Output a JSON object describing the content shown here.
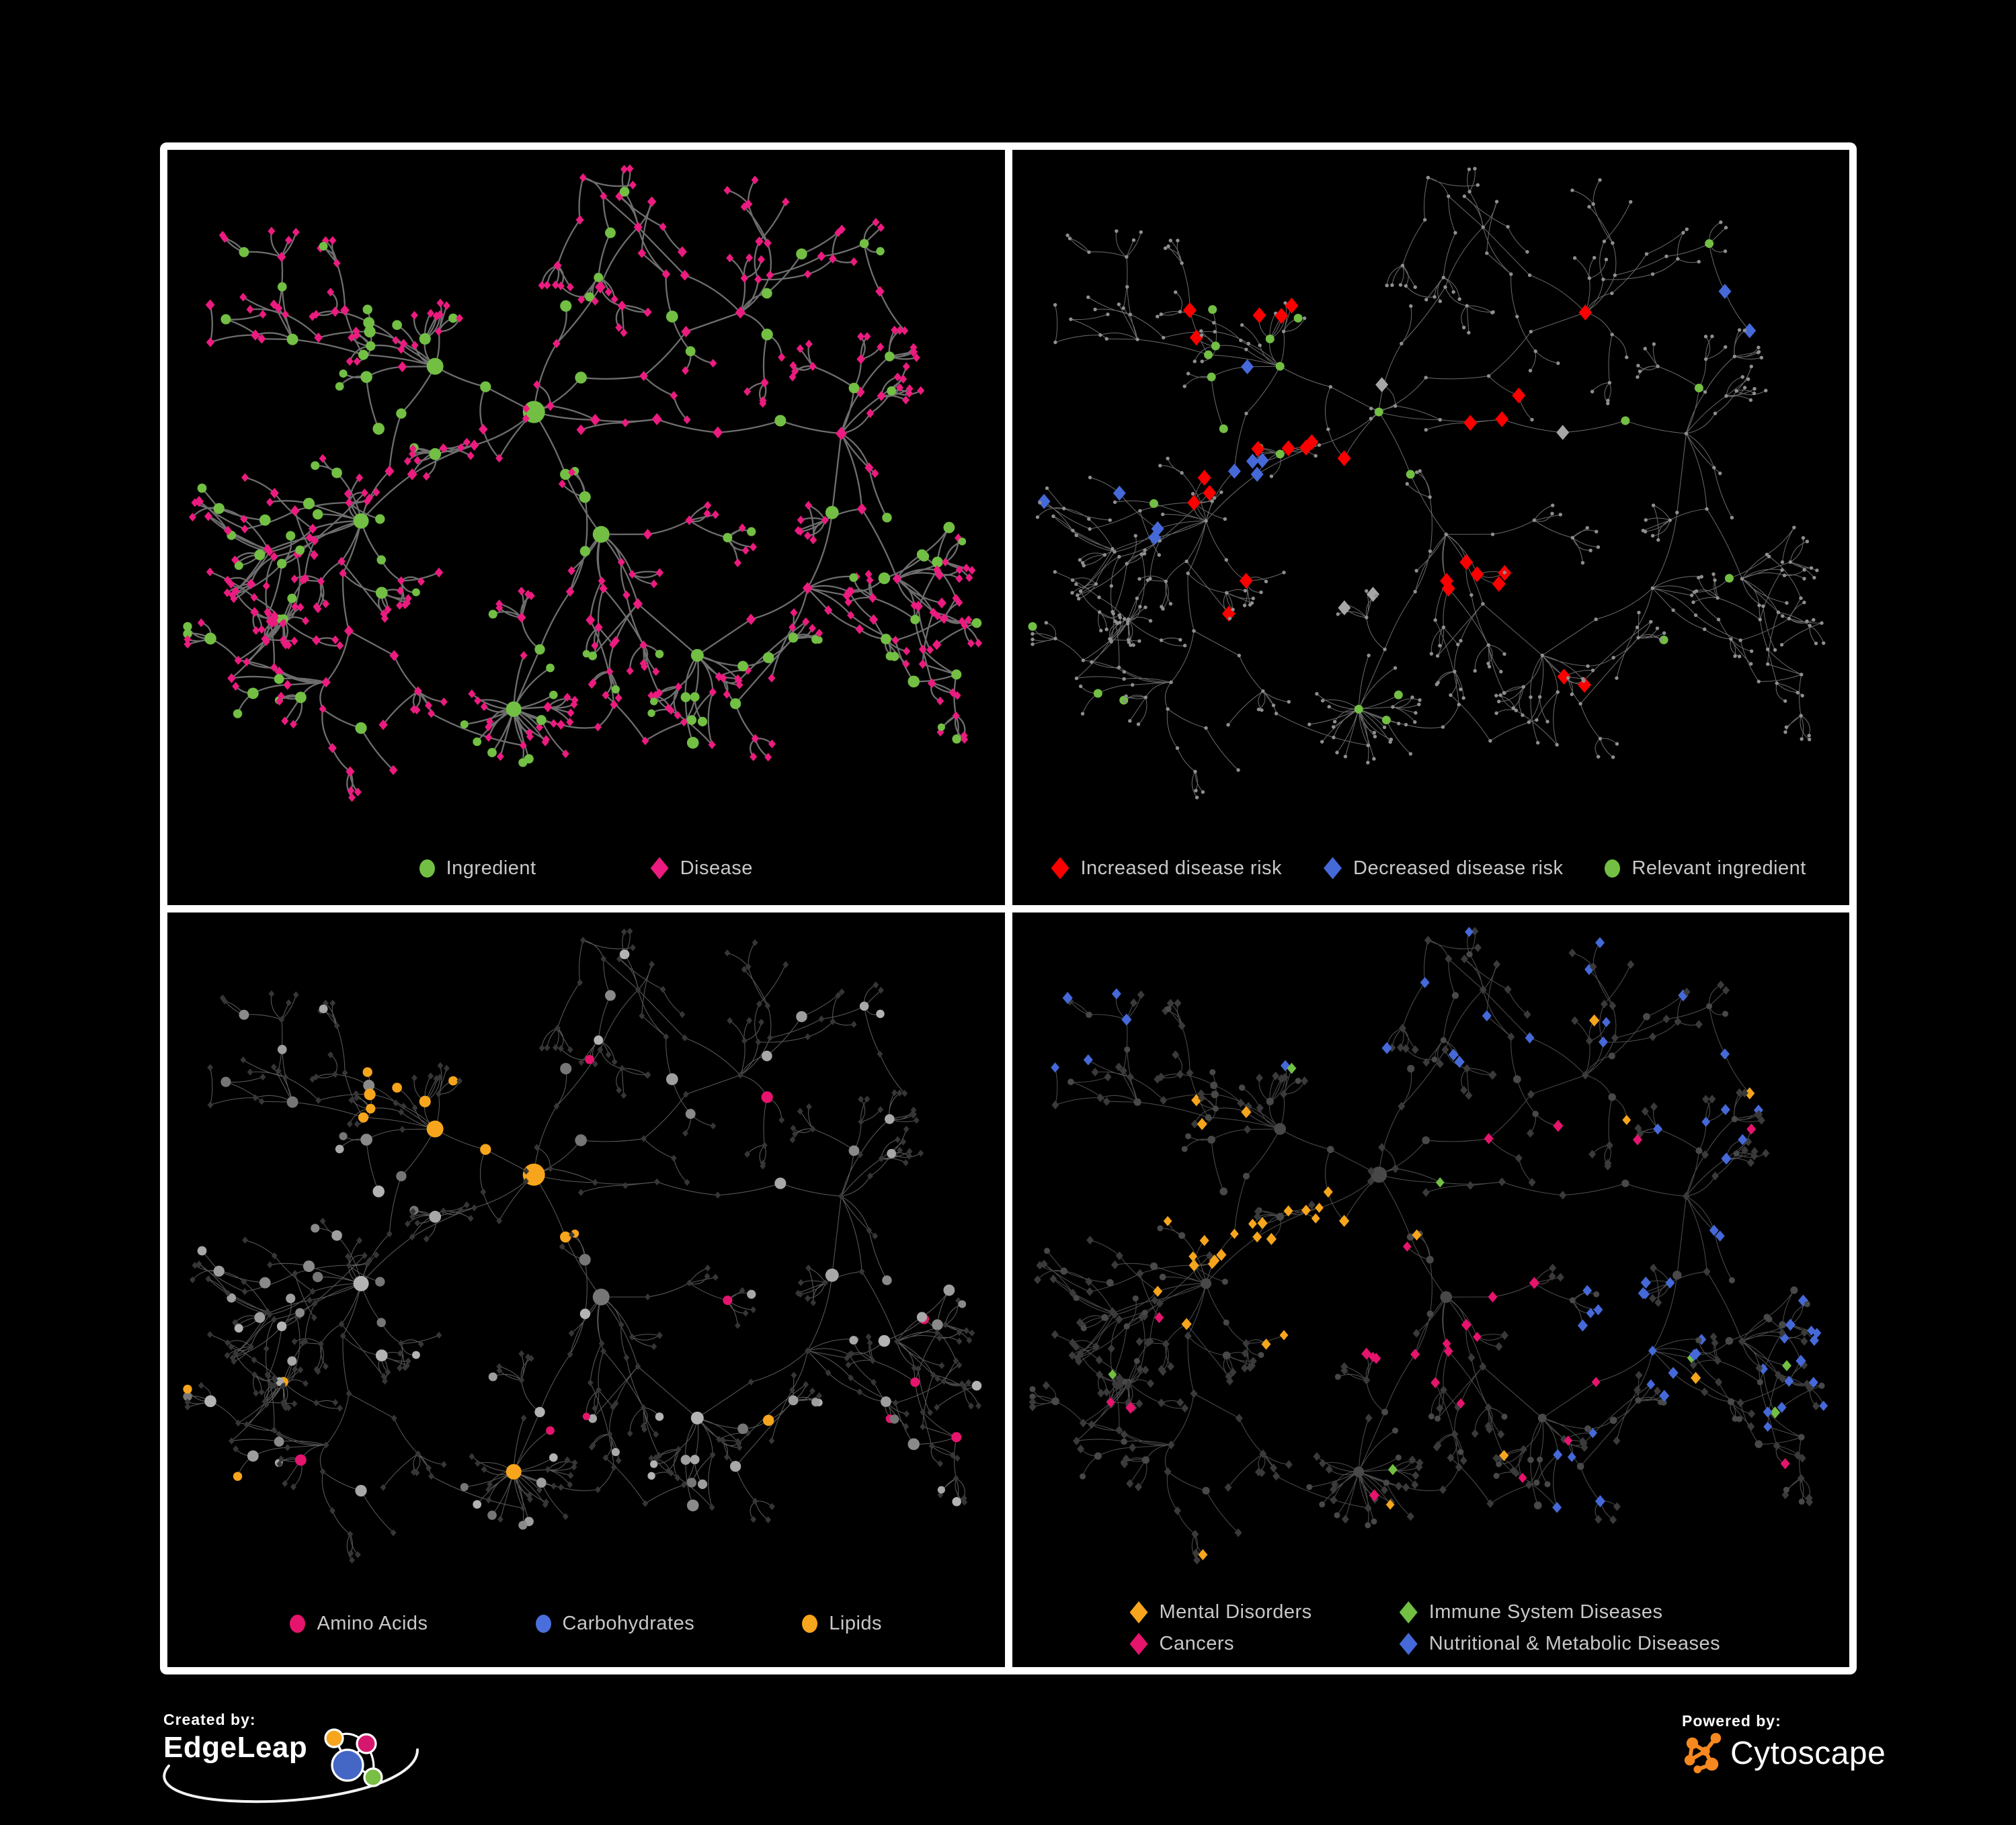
{
  "page": {
    "background": "#000000",
    "frame_color": "#FFFFFF"
  },
  "panels": [
    {
      "id": "ingredient-disease-network",
      "legend": [
        {
          "label": "Ingredient",
          "shape": "circle",
          "color": "#72BF44"
        },
        {
          "label": "Disease",
          "shape": "diamond",
          "color": "#EB1B7F"
        }
      ]
    },
    {
      "id": "disease-risk-network",
      "legend": [
        {
          "label": "Increased disease risk",
          "shape": "diamond",
          "color": "#FA0000"
        },
        {
          "label": "Decreased disease risk",
          "shape": "diamond",
          "color": "#4569D8"
        },
        {
          "label": "Relevant ingredient",
          "shape": "circle",
          "color": "#72BF44"
        }
      ]
    },
    {
      "id": "nutrient-class-network",
      "legend": [
        {
          "label": "Amino Acids",
          "shape": "circle",
          "color": "#E5146D"
        },
        {
          "label": "Carbohydrates",
          "shape": "circle",
          "color": "#4A6FDC"
        },
        {
          "label": "Lipids",
          "shape": "circle",
          "color": "#F6A51C"
        }
      ]
    },
    {
      "id": "disease-class-network",
      "legend": [
        {
          "label": "Mental Disorders",
          "shape": "diamond",
          "color": "#F6A51C"
        },
        {
          "label": "Immune System Diseases",
          "shape": "diamond",
          "color": "#72BF44"
        },
        {
          "label": "Cancers",
          "shape": "diamond",
          "color": "#E5146D"
        },
        {
          "label": "Nutritional & Metabolic Diseases",
          "shape": "diamond",
          "color": "#4569D8"
        }
      ]
    }
  ],
  "footer": {
    "created_by_label": "Created by:",
    "created_by_brand": "EdgeLeap",
    "powered_by_label": "Powered by:",
    "powered_by_brand": "Cytoscape",
    "edgeleap_logo_colors": {
      "orange": "#F6A51C",
      "pink": "#D6176E",
      "blue": "#4467C6",
      "green": "#79BF43"
    },
    "cytoscape_logo_color": "#F6881F"
  },
  "network": {
    "seed": 20417,
    "panel_styles": [
      {
        "edge": "#7A7A7A",
        "edge_w": 2.3,
        "edge_o": 0.9,
        "ingredient": "#72BF44",
        "disease": "#EB1B7F"
      },
      {
        "edge": "#8A8A8A",
        "edge_w": 1.0,
        "edge_o": 0.78,
        "dot": "#8F8F8F",
        "red": "#FA0000",
        "blue": "#4569D8",
        "gray": "#A6A6A6",
        "green": "#72BF44"
      },
      {
        "edge": "#A3A3A3",
        "edge_w": 1.05,
        "edge_o": 0.55,
        "disease": "#363636",
        "ingredient_shades": [
          "#9E9E9E",
          "#8A8A8A",
          "#B3B3B3",
          "#767676",
          "#A8A8A8"
        ],
        "amino": "#E5146D",
        "carb": "#4A6FDC",
        "lipid": "#F6A51C"
      },
      {
        "edge": "#969696",
        "edge_w": 1.05,
        "edge_o": 0.5,
        "disease": "#3A3A3A",
        "ingredient": "#484848",
        "mental": "#F6A51C",
        "immune": "#72BF44",
        "cancer": "#E5146D",
        "metabolic": "#4569D8"
      }
    ]
  },
  "chart_data": {
    "type": "network",
    "note": "Four panels show the same ingredient-disease association network with different colorings; black background, white panel frames.",
    "panels": [
      {
        "legend": [
          "Ingredient",
          "Disease"
        ]
      },
      {
        "legend": [
          "Increased disease risk",
          "Decreased disease risk",
          "Relevant ingredient"
        ]
      },
      {
        "legend": [
          "Amino Acids",
          "Carbohydrates",
          "Lipids"
        ]
      },
      {
        "legend": [
          "Mental Disorders",
          "Immune System Diseases",
          "Cancers",
          "Nutritional & Metabolic Diseases"
        ]
      }
    ]
  }
}
